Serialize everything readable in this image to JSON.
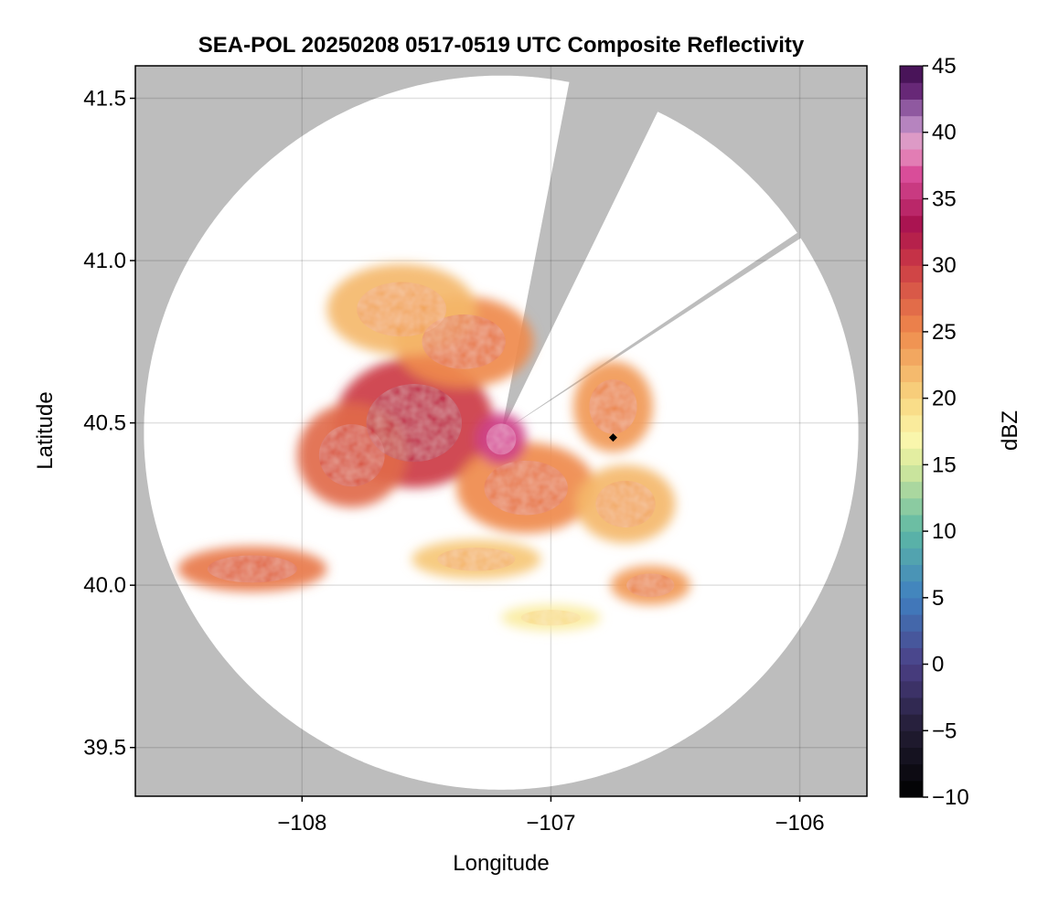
{
  "chart_data": {
    "type": "heatmap",
    "title": "SEA-POL 20250208 0517-0519 UTC Composite Reflectivity",
    "xlabel": "Longitude",
    "ylabel": "Latitude",
    "xlim": [
      -108.67,
      -105.73
    ],
    "ylim": [
      39.35,
      41.6
    ],
    "xticks": [
      {
        "value": -108,
        "label": "−108"
      },
      {
        "value": -107,
        "label": "−107"
      },
      {
        "value": -106,
        "label": "−106"
      }
    ],
    "yticks": [
      {
        "value": 39.5,
        "label": "39.5"
      },
      {
        "value": 40.0,
        "label": "40.0"
      },
      {
        "value": 40.5,
        "label": "40.5"
      },
      {
        "value": 41.0,
        "label": "41.0"
      },
      {
        "value": 41.5,
        "label": "41.5"
      }
    ],
    "grid": true,
    "background_color": "#bdbdbd",
    "radar": {
      "center": {
        "lon": -107.2,
        "lat": 40.47
      },
      "range_deg_lat": 1.1,
      "blocked_sectors_deg_from_north": [
        [
          11,
          26
        ],
        [
          56,
          57
        ]
      ]
    },
    "marker": {
      "lon": -106.75,
      "lat": 40.455,
      "shape": "diamond",
      "color": "#000000"
    },
    "echo_regions": [
      {
        "lon": -107.55,
        "lat": 40.5,
        "dbz": 30
      },
      {
        "lon": -107.35,
        "lat": 40.75,
        "dbz": 25
      },
      {
        "lon": -107.6,
        "lat": 40.85,
        "dbz": 22
      },
      {
        "lon": -107.8,
        "lat": 40.4,
        "dbz": 27
      },
      {
        "lon": -107.1,
        "lat": 40.3,
        "dbz": 25
      },
      {
        "lon": -106.75,
        "lat": 40.55,
        "dbz": 24
      },
      {
        "lon": -106.7,
        "lat": 40.25,
        "dbz": 22
      },
      {
        "lon": -108.2,
        "lat": 40.05,
        "dbz": 26
      },
      {
        "lon": -107.3,
        "lat": 40.08,
        "dbz": 21
      },
      {
        "lon": -106.6,
        "lat": 40.0,
        "dbz": 24
      },
      {
        "lon": -107.0,
        "lat": 39.9,
        "dbz": 18
      },
      {
        "lon": -107.2,
        "lat": 40.45,
        "dbz": 36
      }
    ],
    "colorbar": {
      "label": "dBZ",
      "range": [
        -10,
        45
      ],
      "ticks": [
        -10,
        -5,
        0,
        5,
        10,
        15,
        20,
        25,
        30,
        35,
        40,
        45
      ],
      "tick_labels": [
        "−10",
        "−5",
        "0",
        "5",
        "10",
        "15",
        "20",
        "25",
        "30",
        "35",
        "40",
        "45"
      ],
      "stops": [
        {
          "value": -10,
          "color": "#000000"
        },
        {
          "value": -5,
          "color": "#221c33"
        },
        {
          "value": 0,
          "color": "#4b3f86"
        },
        {
          "value": 5,
          "color": "#3f7fc0"
        },
        {
          "value": 10,
          "color": "#5db8a4"
        },
        {
          "value": 15,
          "color": "#d8ea9c"
        },
        {
          "value": 17,
          "color": "#fbf7ad"
        },
        {
          "value": 20,
          "color": "#f8d680"
        },
        {
          "value": 25,
          "color": "#ef8a4c"
        },
        {
          "value": 30,
          "color": "#cc3b45"
        },
        {
          "value": 33,
          "color": "#a8124f"
        },
        {
          "value": 37,
          "color": "#db4f9b"
        },
        {
          "value": 39,
          "color": "#e8a1c8"
        },
        {
          "value": 41,
          "color": "#ab7dbd"
        },
        {
          "value": 43,
          "color": "#6a2a7a"
        },
        {
          "value": 45,
          "color": "#3a0a4a"
        }
      ]
    }
  }
}
